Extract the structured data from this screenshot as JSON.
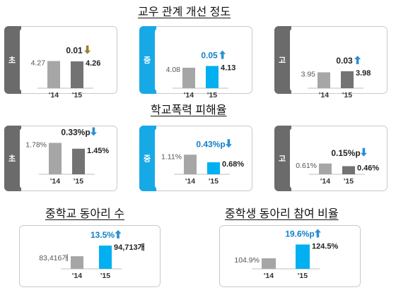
{
  "sections": [
    {
      "title": "교우 관계 개선 정도"
    },
    {
      "title": "학교폭력 피해율"
    },
    {
      "title": "중학교 동아리 수"
    },
    {
      "title": "중학생 동아리 참여 비율"
    }
  ],
  "colors": {
    "gray_tab": "#6b6b6b",
    "blue_tab": "#17a9e6",
    "bar_2014": "#a6a6a6",
    "bar_2015_gray": "#737373",
    "bar_2015_blue": "#00b0f0",
    "arrow_gold": "#9a7d2e",
    "arrow_blue": "#2b8fd6",
    "text_blue": "#1480c8"
  },
  "chart_data": [
    {
      "type": "bar",
      "section": 0,
      "tab": "초",
      "categories": [
        "'14",
        "'15"
      ],
      "values": [
        4.27,
        4.26
      ],
      "value_labels": [
        "4.27",
        "4.26"
      ],
      "change": "0.01",
      "direction": "down",
      "highlight": false
    },
    {
      "type": "bar",
      "section": 0,
      "tab": "중",
      "categories": [
        "'14",
        "'15"
      ],
      "values": [
        4.08,
        4.13
      ],
      "value_labels": [
        "4.08",
        "4.13"
      ],
      "change": "0.05",
      "direction": "up",
      "highlight": true
    },
    {
      "type": "bar",
      "section": 0,
      "tab": "고",
      "categories": [
        "'14",
        "'15"
      ],
      "values": [
        3.95,
        3.98
      ],
      "value_labels": [
        "3.95",
        "3.98"
      ],
      "change": "0.03",
      "direction": "up",
      "highlight": false
    },
    {
      "type": "bar",
      "section": 1,
      "tab": "초",
      "categories": [
        "'14",
        "'15"
      ],
      "values": [
        1.78,
        1.45
      ],
      "value_labels": [
        "1.78%",
        "1.45%"
      ],
      "change": "0.33%p",
      "direction": "down",
      "highlight": false
    },
    {
      "type": "bar",
      "section": 1,
      "tab": "중",
      "categories": [
        "'14",
        "'15"
      ],
      "values": [
        1.11,
        0.68
      ],
      "value_labels": [
        "1.11%",
        "0.68%"
      ],
      "change": "0.43%p",
      "direction": "down",
      "highlight": true
    },
    {
      "type": "bar",
      "section": 1,
      "tab": "고",
      "categories": [
        "'14",
        "'15"
      ],
      "values": [
        0.61,
        0.46
      ],
      "value_labels": [
        "0.61%",
        "0.46%"
      ],
      "change": "0.15%p",
      "direction": "down",
      "highlight": false
    },
    {
      "type": "bar",
      "section": 2,
      "tab": "",
      "categories": [
        "'14",
        "'15"
      ],
      "values": [
        83416,
        94713
      ],
      "value_labels": [
        "83,416개",
        "94,713개"
      ],
      "change": "13.5%",
      "direction": "up",
      "highlight": true
    },
    {
      "type": "bar",
      "section": 3,
      "tab": "",
      "categories": [
        "'14",
        "'15"
      ],
      "values": [
        104.9,
        124.5
      ],
      "value_labels": [
        "104.9%",
        "124.5%"
      ],
      "change": "19.6%p",
      "direction": "up",
      "highlight": true
    }
  ]
}
